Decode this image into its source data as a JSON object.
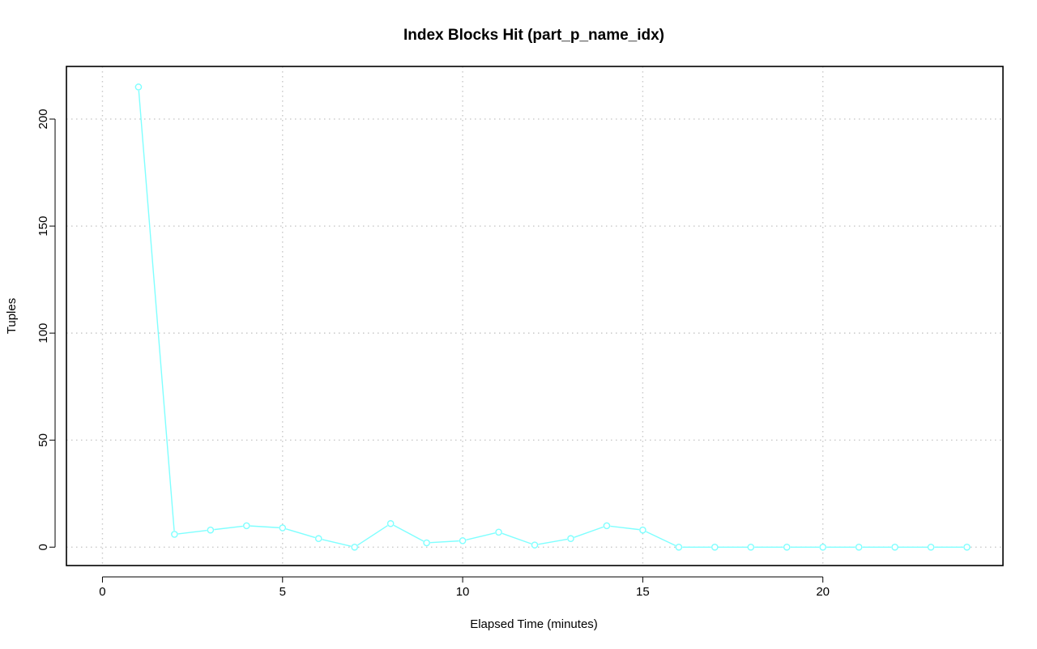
{
  "chart_data": {
    "type": "line",
    "title": "Index Blocks Hit (part_p_name_idx)",
    "xlabel": "Elapsed Time (minutes)",
    "ylabel": "Tuples",
    "xlim": [
      -1,
      25
    ],
    "ylim": [
      -8.6,
      224.6
    ],
    "x_ticks": [
      0,
      5,
      10,
      15,
      20
    ],
    "y_ticks": [
      0,
      50,
      100,
      150,
      200
    ],
    "grid": true,
    "series": [
      {
        "color": "#7fffff",
        "x": [
          1,
          2,
          3,
          4,
          5,
          6,
          7,
          8,
          9,
          10,
          11,
          12,
          13,
          14,
          15,
          16,
          17,
          18,
          19,
          20,
          21,
          22,
          23,
          24
        ],
        "values": [
          215,
          6,
          8,
          10,
          9,
          4,
          0,
          11,
          2,
          3,
          7,
          1,
          4,
          10,
          8,
          0,
          0,
          0,
          0,
          0,
          0,
          0,
          0,
          0
        ]
      }
    ]
  }
}
